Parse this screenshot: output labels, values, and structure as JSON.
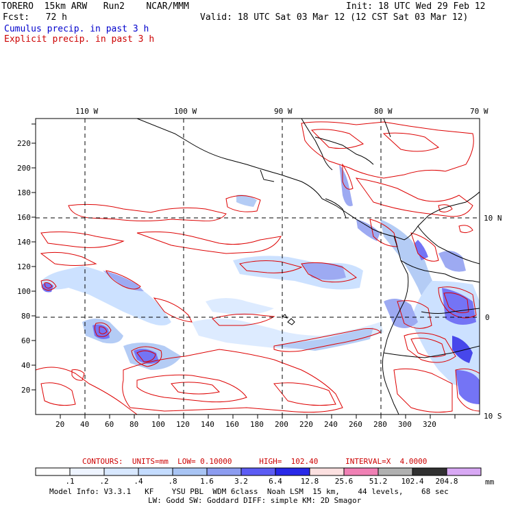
{
  "header": {
    "model_name": "TORERO  15km ARW   Run2    NCAR/MMM",
    "init": "Init: 18 UTC Wed 29 Feb 12",
    "fcst": "Fcst:   72 h",
    "valid": "Valid: 18 UTC Sat 03 Mar 12 (12 CST Sat 03 Mar 12)",
    "legend_cumulus": "Cumulus precip. in past 3 h",
    "legend_explicit": "Explicit precip. in past 3 h"
  },
  "colors": {
    "cumulus_text": "#0000cc",
    "explicit_text": "#cc0000",
    "contour": "#dd0000",
    "coast": "#000000"
  },
  "map": {
    "lon_labels": [
      "110 W",
      "100 W",
      "90 W",
      "80 W",
      "70 W"
    ],
    "lat_labels": [
      "10 N",
      "0",
      "10 S"
    ],
    "x_ticks": [
      "20",
      "40",
      "60",
      "80",
      "100",
      "120",
      "140",
      "160",
      "180",
      "200",
      "220",
      "240",
      "260",
      "280",
      "300",
      "320"
    ],
    "y_ticks": [
      "20",
      "40",
      "60",
      "80",
      "100",
      "120",
      "140",
      "160",
      "180",
      "200",
      "220"
    ]
  },
  "contour_info": {
    "text": "CONTOURS:  UNITS=mm  LOW= 0.10000      HIGH=  102.40      INTERVAL=X  4.0000"
  },
  "colorbar": {
    "labels": [
      ".1",
      ".2",
      ".4",
      ".8",
      "1.6",
      "3.2",
      "6.4",
      "12.8",
      "25.6",
      "51.2",
      "102.4",
      "204.8"
    ],
    "colors": [
      "#ffffff",
      "#eef4ff",
      "#d8e8ff",
      "#c4dcff",
      "#a8c4f4",
      "#8c9cf0",
      "#5c5cf4",
      "#2828e8",
      "#fce0e0",
      "#f080b4",
      "#b0b0b0",
      "#303030",
      "#d8a8f4"
    ],
    "unit": "mm"
  },
  "footer": {
    "line1": "Model Info: V3.3.1   KF    YSU PBL  WDM 6class  Noah LSM  15 km,    44 levels,    68 sec",
    "line2": "LW: Godd SW: Goddard DIFF: simple KM: 2D Smagor"
  }
}
